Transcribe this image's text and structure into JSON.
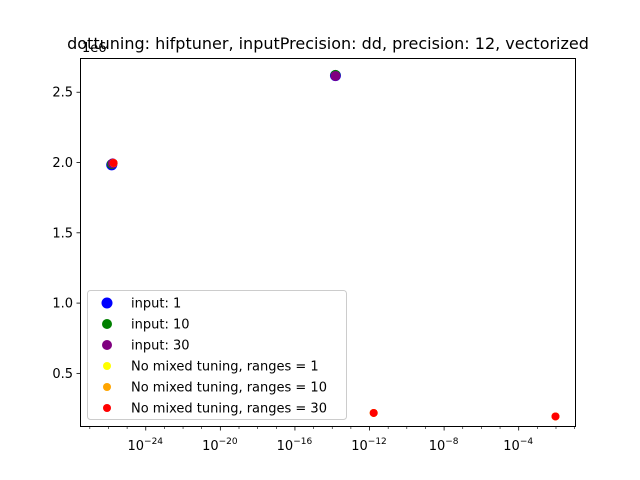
{
  "chart_data": {
    "type": "scatter",
    "title": "dottuning: hifptuner, inputPrecision: dd, precision: 12, vectorized",
    "xlabel": "",
    "ylabel": "",
    "xscale": "log",
    "xlim_exponent": [
      -27.5,
      -0.9
    ],
    "ylim": [
      115000,
      2740000
    ],
    "y_offset_label": "1e6",
    "x_ticks": [
      {
        "base": "10",
        "exp": "−24",
        "value_exp": -24
      },
      {
        "base": "10",
        "exp": "−20",
        "value_exp": -20
      },
      {
        "base": "10",
        "exp": "−16",
        "value_exp": -16
      },
      {
        "base": "10",
        "exp": "−12",
        "value_exp": -12
      },
      {
        "base": "10",
        "exp": "−8",
        "value_exp": -8
      },
      {
        "base": "10",
        "exp": "−4",
        "value_exp": -4
      }
    ],
    "y_ticks": [
      {
        "label": "0.5",
        "value": 500000
      },
      {
        "label": "1.0",
        "value": 1000000
      },
      {
        "label": "1.5",
        "value": 1500000
      },
      {
        "label": "2.0",
        "value": 2000000
      },
      {
        "label": "2.5",
        "value": 2500000
      }
    ],
    "grid": false,
    "legend_position": "lower-left",
    "series": [
      {
        "name": "input: 1",
        "color": "#0000ff",
        "size": "large",
        "points": [
          {
            "x_exp": -25.8,
            "y": 1980000
          },
          {
            "x_exp": -13.8,
            "y": 2615000
          }
        ]
      },
      {
        "name": "input: 10",
        "color": "#008000",
        "size": "medium",
        "points": [
          {
            "x_exp": -25.8,
            "y": 1985000
          },
          {
            "x_exp": -13.8,
            "y": 2620000
          }
        ]
      },
      {
        "name": "input: 30",
        "color": "#800080",
        "size": "medium",
        "points": [
          {
            "x_exp": -25.75,
            "y": 1990000
          },
          {
            "x_exp": -13.8,
            "y": 2612000
          }
        ]
      },
      {
        "name": "No mixed tuning, ranges = 1",
        "color": "#ffff00",
        "size": "small",
        "points": [
          {
            "x_exp": -25.7,
            "y": 1992000
          },
          {
            "x_exp": -11.75,
            "y": 215000
          },
          {
            "x_exp": -2.0,
            "y": 190000
          }
        ]
      },
      {
        "name": "No mixed tuning, ranges = 10",
        "color": "#ffa500",
        "size": "small",
        "points": [
          {
            "x_exp": -25.7,
            "y": 1993000
          },
          {
            "x_exp": -11.75,
            "y": 215000
          },
          {
            "x_exp": -2.0,
            "y": 190000
          }
        ]
      },
      {
        "name": "No mixed tuning, ranges = 30",
        "color": "#ff0000",
        "size": "small",
        "points": [
          {
            "x_exp": -25.7,
            "y": 1993000
          },
          {
            "x_exp": -11.75,
            "y": 215000
          },
          {
            "x_exp": -2.0,
            "y": 190000
          }
        ]
      }
    ]
  }
}
